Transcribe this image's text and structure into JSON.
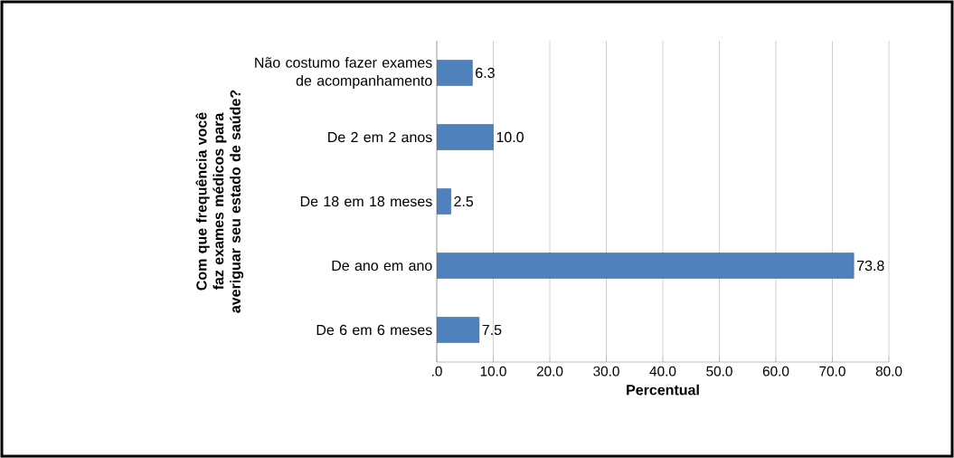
{
  "chart_data": {
    "type": "bar",
    "orientation": "horizontal",
    "xlabel": "Percentual",
    "ylabel": "Com que frequência você faz exames médicos para averiguar  seu estado de saúde?",
    "categories": [
      "Não costumo fazer exames de acompanhamento",
      "De 2 em 2 anos",
      "De 18 em 18 meses",
      "De ano em ano",
      "De 6 em 6 meses"
    ],
    "values": [
      6.3,
      10.0,
      2.5,
      73.8,
      7.5
    ],
    "value_labels": [
      "6.3",
      "10.0",
      "2.5",
      "73.8",
      "7.5"
    ],
    "color": "#4f81bd",
    "xlim": [
      0,
      80
    ],
    "xticks": [
      {
        "value": 0,
        "label": ".0"
      },
      {
        "value": 10,
        "label": "10.0"
      },
      {
        "value": 20,
        "label": "20.0"
      },
      {
        "value": 30,
        "label": "30.0"
      },
      {
        "value": 40,
        "label": "40.0"
      },
      {
        "value": 50,
        "label": "50.0"
      },
      {
        "value": 60,
        "label": "60.0"
      },
      {
        "value": 70,
        "label": "70.0"
      },
      {
        "value": 80,
        "label": "80.0"
      }
    ],
    "grid": "x"
  }
}
